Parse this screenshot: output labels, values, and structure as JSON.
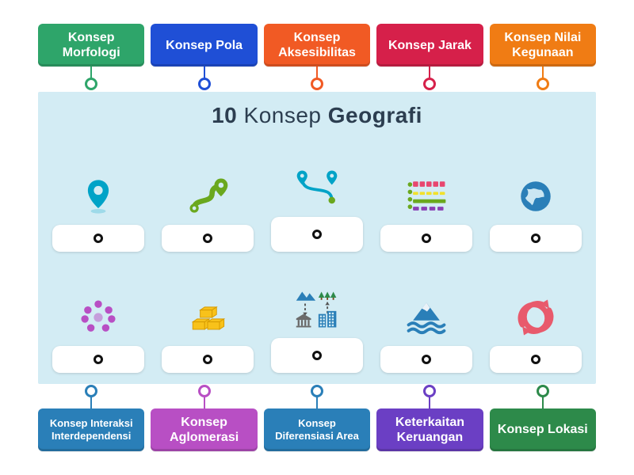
{
  "title": {
    "bold": "10",
    "mid": "Konsep",
    "last": "Geografi"
  },
  "top": [
    {
      "label": "Konsep Morfologi",
      "bg": "#2ea56a",
      "connector": "#2ea56a"
    },
    {
      "label": "Konsep Pola",
      "bg": "#1f4fd6",
      "connector": "#1f4fd6"
    },
    {
      "label": "Konsep Aksesibilitas",
      "bg": "#f15a24",
      "connector": "#f15a24"
    },
    {
      "label": "Konsep Jarak",
      "bg": "#d6204a",
      "connector": "#d6204a"
    },
    {
      "label": "Konsep Nilai Kegunaan",
      "bg": "#f07c14",
      "connector": "#f07c14"
    }
  ],
  "bottom": [
    {
      "label": "Konsep Interaksi Interdependensi",
      "bg": "#2a7fb8",
      "connector": "#2a7fb8",
      "fontSize": "13px"
    },
    {
      "label": "Konsep Aglomerasi",
      "bg": "#b84fc4",
      "connector": "#b84fc4"
    },
    {
      "label": "Konsep Diferensiasi Area",
      "bg": "#2a7fb8",
      "connector": "#2a7fb8",
      "fontSize": "13px"
    },
    {
      "label": "Keterkaitan Keruangan",
      "bg": "#6b3fc4",
      "connector": "#6b3fc4"
    },
    {
      "label": "Konsep Lokasi",
      "bg": "#2d8a4a",
      "connector": "#2d8a4a"
    }
  ],
  "icons": [
    {
      "name": "location-pin-icon",
      "type": "pin",
      "color": "#00a3c7"
    },
    {
      "name": "route-icon",
      "type": "route",
      "color": "#6aa81e"
    },
    {
      "name": "river-path-icon",
      "type": "river",
      "color": "#00a3c7",
      "accent": "#6aa81e"
    },
    {
      "name": "pattern-grid-icon",
      "type": "patterns",
      "colors": [
        "#e8466e",
        "#f2e12b",
        "#6aa81e",
        "#8a3fb5"
      ]
    },
    {
      "name": "globe-icon",
      "type": "globe",
      "color": "#2a7fb8"
    },
    {
      "name": "cluster-dots-icon",
      "type": "cluster",
      "color": "#b84fc4"
    },
    {
      "name": "gold-bars-icon",
      "type": "bars",
      "color": "#f8c21a",
      "stroke": "#d69a00"
    },
    {
      "name": "area-differentiation-icon",
      "type": "areas",
      "colors": {
        "mountain": "#2a7fb8",
        "tree": "#2d8a4a",
        "building": "#2a7fb8",
        "bank": "#6b6b6b"
      }
    },
    {
      "name": "mountain-water-icon",
      "type": "mountainwater",
      "color": "#2a7fb8"
    },
    {
      "name": "interdependence-arrows-icon",
      "type": "arrows",
      "color": "#e85a6c"
    }
  ],
  "panelBackground": "#d3ecf4"
}
